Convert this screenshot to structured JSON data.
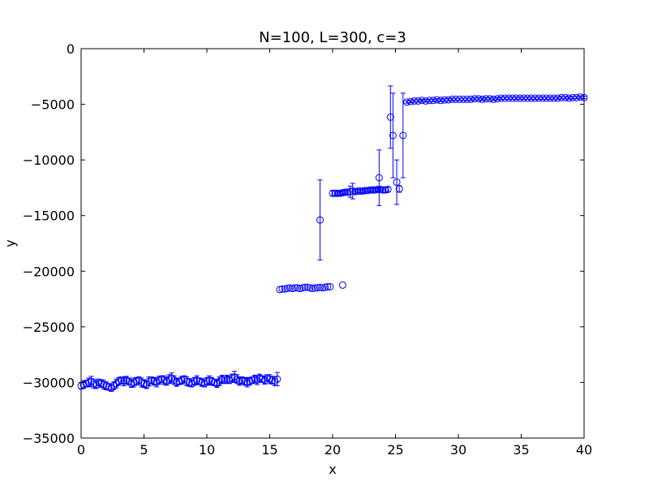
{
  "chart_data": {
    "type": "scatter",
    "title": "N=100, L=300, c=3",
    "xlabel": "x",
    "ylabel": "y",
    "xlim": [
      0,
      40
    ],
    "ylim": [
      -35000,
      0
    ],
    "xticks": [
      0,
      5,
      10,
      15,
      20,
      25,
      30,
      35,
      40
    ],
    "xtick_labels": [
      "0",
      "5",
      "10",
      "15",
      "20",
      "25",
      "30",
      "35",
      "40"
    ],
    "yticks": [
      0,
      -5000,
      -10000,
      -15000,
      -20000,
      -25000,
      -30000,
      -35000
    ],
    "ytick_labels": [
      "0",
      "−5000",
      "−10000",
      "−15000",
      "−20000",
      "−25000",
      "−30000",
      "−35000"
    ],
    "grid": false,
    "legend": "none",
    "marker": "open-circle",
    "color": "#0000ff",
    "series": [
      {
        "x": [
          0.0,
          0.2,
          0.4,
          0.6,
          0.8,
          1.0,
          1.2,
          1.4,
          1.6,
          1.8,
          2.0,
          2.2,
          2.4,
          2.6,
          2.8,
          3.0,
          3.2,
          3.4,
          3.6,
          3.8,
          4.0,
          4.2,
          4.4,
          4.6,
          4.8,
          5.0,
          5.2,
          5.4,
          5.6,
          5.8,
          6.0,
          6.2,
          6.4,
          6.6,
          6.8,
          7.0,
          7.2,
          7.4,
          7.6,
          7.8,
          8.0,
          8.2,
          8.4,
          8.6,
          8.8,
          9.0,
          9.2,
          9.4,
          9.6,
          9.8,
          10.0,
          10.2,
          10.4,
          10.6,
          10.8,
          11.0,
          11.2,
          11.4,
          11.6,
          11.8,
          12.0,
          12.2,
          12.4,
          12.6,
          12.8,
          13.0,
          13.2,
          13.4,
          13.6,
          13.8,
          14.0,
          14.2,
          14.4,
          14.6,
          14.8,
          15.0,
          15.2,
          15.4,
          15.6
        ],
        "y": [
          -30300,
          -30200,
          -30100,
          -30000,
          -29900,
          -30100,
          -30200,
          -30000,
          -30100,
          -30200,
          -30300,
          -30400,
          -30500,
          -30300,
          -30100,
          -29900,
          -29800,
          -29900,
          -29800,
          -29900,
          -30100,
          -30000,
          -29900,
          -29800,
          -30000,
          -30100,
          -30200,
          -29900,
          -29800,
          -29900,
          -30000,
          -29800,
          -29700,
          -29800,
          -29900,
          -29700,
          -29600,
          -29800,
          -30000,
          -29900,
          -29800,
          -29700,
          -29900,
          -30000,
          -30100,
          -29900,
          -29800,
          -29900,
          -30000,
          -30100,
          -29900,
          -29800,
          -29900,
          -30000,
          -30100,
          -29900,
          -29700,
          -29800,
          -29700,
          -29800,
          -29600,
          -29500,
          -29700,
          -29900,
          -29800,
          -29900,
          -30000,
          -29900,
          -29800,
          -29700,
          -29800,
          -29600,
          -29700,
          -29800,
          -29600,
          -29700,
          -29800,
          -29900,
          -29700
        ],
        "yerr": [
          300,
          350,
          300,
          400,
          450,
          400,
          350,
          300,
          350,
          400,
          350,
          300,
          300,
          350,
          400,
          350,
          300,
          400,
          350,
          300,
          350,
          400,
          350,
          300,
          400,
          350,
          350,
          400,
          300,
          350,
          400,
          350,
          300,
          400,
          350,
          400,
          450,
          400,
          350,
          300,
          350,
          300,
          400,
          350,
          300,
          350,
          400,
          300,
          350,
          300,
          350,
          400,
          350,
          300,
          350,
          400,
          350,
          300,
          350,
          300,
          350,
          500,
          400,
          350,
          300,
          350,
          400,
          350,
          300,
          350,
          400,
          350,
          300,
          350,
          300,
          400,
          350,
          400,
          600
        ]
      },
      {
        "x": [
          15.8,
          16.0,
          16.2,
          16.4,
          16.6,
          16.8,
          17.0,
          17.2,
          17.4,
          17.6,
          17.8,
          18.0,
          18.2,
          18.4,
          18.6,
          18.8,
          19.0,
          19.2,
          19.4,
          19.6,
          19.8,
          20.8
        ],
        "y": [
          -21650,
          -21600,
          -21600,
          -21550,
          -21500,
          -21550,
          -21500,
          -21500,
          -21550,
          -21500,
          -21450,
          -21450,
          -21500,
          -21550,
          -21500,
          -21500,
          -21450,
          -21500,
          -21450,
          -21400,
          -21400,
          -21250
        ],
        "yerr": [
          0,
          0,
          0,
          0,
          0,
          0,
          0,
          0,
          0,
          0,
          0,
          0,
          0,
          0,
          0,
          0,
          0,
          0,
          0,
          0,
          0,
          0
        ]
      },
      {
        "x": [
          19.0
        ],
        "y": [
          -15400
        ],
        "yerr": [
          3600
        ]
      },
      {
        "x": [
          20.0,
          20.2,
          20.4,
          20.6,
          20.8,
          21.0,
          21.2,
          21.4,
          21.6,
          21.8,
          22.0,
          22.2,
          22.4,
          22.6,
          22.8,
          23.0,
          23.2,
          23.4,
          23.6,
          23.8,
          24.0,
          24.2,
          24.4
        ],
        "y": [
          -13000,
          -13000,
          -13000,
          -13000,
          -12950,
          -12900,
          -12900,
          -12850,
          -12800,
          -12850,
          -12800,
          -12800,
          -12800,
          -12750,
          -12750,
          -12700,
          -12700,
          -12700,
          -12650,
          -12650,
          -12700,
          -12700,
          -12650
        ],
        "yerr": [
          200,
          200,
          150,
          150,
          150,
          150,
          200,
          500,
          700,
          200,
          150,
          150,
          150,
          150,
          150,
          150,
          150,
          150,
          150,
          150,
          200,
          200,
          200
        ]
      },
      {
        "x": [
          23.7,
          24.6,
          24.8,
          25.1,
          25.3,
          25.6
        ],
        "y": [
          -11600,
          -6150,
          -7800,
          -12000,
          -12600,
          -7800
        ],
        "yerr": [
          2500,
          2800,
          3800,
          2000,
          300,
          3800
        ]
      },
      {
        "x": [
          25.9,
          26.2,
          26.5,
          26.8,
          27.1,
          27.4,
          27.7,
          28.0,
          28.3,
          28.6,
          28.9,
          29.2,
          29.5,
          29.8,
          30.1,
          30.4,
          30.7,
          31.0,
          31.3,
          31.6,
          31.9,
          32.2,
          32.5,
          32.8,
          33.1,
          33.4,
          33.7,
          34.0,
          34.3,
          34.6,
          34.9,
          35.2,
          35.5,
          35.8,
          36.1,
          36.4,
          36.7,
          37.0,
          37.3,
          37.6,
          37.9,
          38.2,
          38.5,
          38.8,
          39.1,
          39.4,
          39.7,
          40.0
        ],
        "y": [
          -4800,
          -4750,
          -4700,
          -4700,
          -4650,
          -4700,
          -4650,
          -4650,
          -4600,
          -4650,
          -4600,
          -4600,
          -4550,
          -4550,
          -4550,
          -4550,
          -4550,
          -4550,
          -4500,
          -4500,
          -4550,
          -4500,
          -4500,
          -4550,
          -4500,
          -4450,
          -4450,
          -4450,
          -4450,
          -4450,
          -4450,
          -4450,
          -4450,
          -4450,
          -4450,
          -4450,
          -4450,
          -4450,
          -4450,
          -4450,
          -4450,
          -4400,
          -4400,
          -4450,
          -4400,
          -4400,
          -4350,
          -4400
        ],
        "yerr": [
          100,
          100,
          100,
          100,
          100,
          100,
          100,
          100,
          100,
          100,
          100,
          100,
          100,
          100,
          100,
          100,
          100,
          100,
          100,
          100,
          100,
          100,
          100,
          100,
          100,
          100,
          100,
          100,
          100,
          100,
          100,
          100,
          100,
          100,
          100,
          100,
          100,
          100,
          100,
          100,
          100,
          100,
          100,
          100,
          100,
          100,
          100,
          100
        ]
      }
    ]
  }
}
